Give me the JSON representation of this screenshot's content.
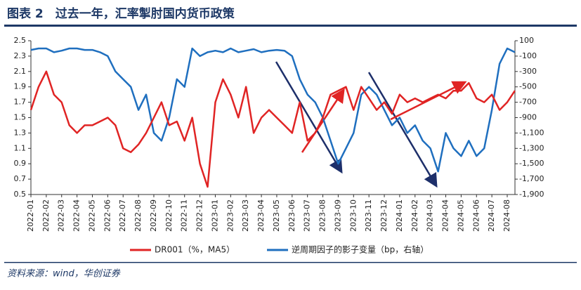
{
  "chart_data": {
    "type": "line",
    "title": "图表 2　过去一年，汇率掣肘国内货币政策",
    "source": "资料来源：wind，华创证券",
    "categories": [
      "2022-01",
      null,
      "2022-02",
      null,
      "2022-03",
      null,
      "2022-04",
      null,
      "2022-05",
      null,
      "2022-06",
      null,
      "2022-07",
      null,
      "2022-08",
      null,
      "2022-09",
      null,
      "2022-10",
      null,
      "2022-11",
      null,
      "2022-12",
      null,
      "2023-01",
      null,
      "2023-02",
      null,
      "2023-03",
      null,
      "2023-04",
      null,
      "2023-05",
      null,
      "2023-06",
      null,
      "2023-07",
      null,
      "2023-08",
      null,
      "2023-09",
      null,
      "2023-10",
      null,
      "2023-11",
      null,
      "2023-12",
      null,
      "2024-01",
      null,
      "2024-02",
      null,
      "2024-03",
      null,
      "2024-04",
      null,
      "2024-05",
      null,
      "2024-06",
      null,
      "2024-07",
      null,
      "2024-08",
      null
    ],
    "series": [
      {
        "name": "DR001（%，MA5）",
        "color": "#e02424",
        "values": [
          1.6,
          1.9,
          2.1,
          1.8,
          1.7,
          1.4,
          1.3,
          1.4,
          1.4,
          1.45,
          1.5,
          1.4,
          1.1,
          1.05,
          1.15,
          1.3,
          1.5,
          1.7,
          1.4,
          1.45,
          1.2,
          1.5,
          0.9,
          0.6,
          1.7,
          2.0,
          1.8,
          1.5,
          1.9,
          1.3,
          1.5,
          1.6,
          1.5,
          1.4,
          1.3,
          1.7,
          1.2,
          1.3,
          1.5,
          1.8,
          1.85,
          1.9,
          1.6,
          1.9,
          1.75,
          1.6,
          1.7,
          1.55,
          1.8,
          1.7,
          1.75,
          1.7,
          1.75,
          1.8,
          1.75,
          1.85,
          1.85,
          1.95,
          1.75,
          1.7,
          1.8,
          1.6,
          1.7,
          1.85
        ]
      },
      {
        "name": "逆周期因子的影子变量（bp，右轴）",
        "color": "#1f6fbf",
        "axis": "y2",
        "values": [
          -20,
          0,
          0,
          -50,
          -30,
          0,
          0,
          -20,
          -20,
          -50,
          -100,
          -300,
          -400,
          -500,
          -800,
          -600,
          -1100,
          -1200,
          -900,
          -400,
          -500,
          0,
          -100,
          -50,
          -30,
          -50,
          0,
          -50,
          -30,
          -10,
          -50,
          -30,
          -20,
          -30,
          -100,
          -400,
          -600,
          -700,
          -900,
          -1200,
          -1500,
          -1300,
          -1100,
          -600,
          -500,
          -600,
          -800,
          -1000,
          -900,
          -1100,
          -1000,
          -1200,
          -1300,
          -1600,
          -1100,
          -1300,
          -1400,
          -1200,
          -1400,
          -1300,
          -800,
          -200,
          0,
          -50
        ]
      }
    ],
    "ylim": [
      0.5,
      2.5
    ],
    "yticks": [
      0.5,
      0.7,
      0.9,
      1.1,
      1.3,
      1.5,
      1.7,
      1.9,
      2.1,
      2.3,
      2.5
    ],
    "y2lim": [
      -1900,
      100
    ],
    "y2ticks": [
      100,
      -100,
      -300,
      -500,
      -700,
      -900,
      {
        "value": -1100,
        "label": "-1,100"
      },
      {
        "value": -1300,
        "label": "-1,300"
      },
      {
        "value": -1500,
        "label": "-1,500"
      },
      {
        "value": -1700,
        "label": "-1,700"
      },
      {
        "value": -1900,
        "label": "-1,900"
      }
    ]
  }
}
